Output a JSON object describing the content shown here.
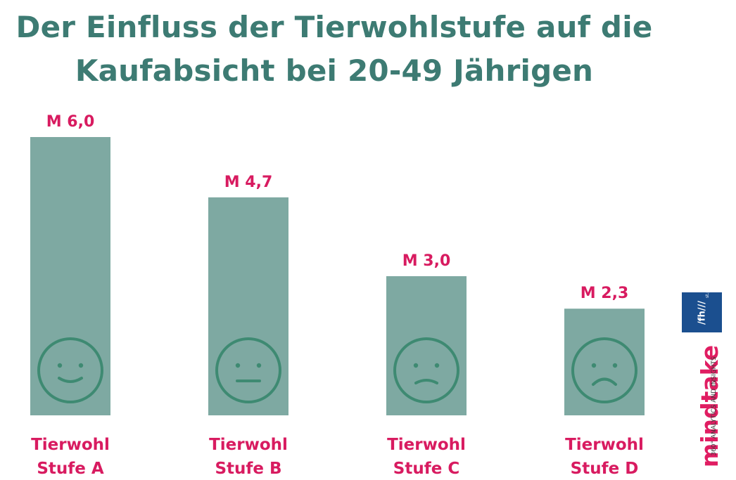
{
  "title": {
    "line1": "Der Einfluss der Tierwohlstufe auf die",
    "line2": "Kaufabsicht bei 20-49 Jährigen"
  },
  "chart_data": {
    "type": "bar",
    "categories": [
      [
        "Tierwohl",
        "Stufe A"
      ],
      [
        "Tierwohl",
        "Stufe B"
      ],
      [
        "Tierwohl",
        "Stufe C"
      ],
      [
        "Tierwohl",
        "Stufe D"
      ]
    ],
    "values": [
      6.0,
      4.7,
      3.0,
      2.3
    ],
    "data_labels": [
      "M 6,0",
      "M 4,7",
      "M 3,0",
      "M 2,3"
    ],
    "icons": [
      "smiling-face-icon",
      "neutral-face-icon",
      "slightly-frowning-face-icon",
      "frowning-face-icon"
    ],
    "ylim": [
      0,
      6.0
    ],
    "grid": false,
    "colors": {
      "bar": "#7ea9a2",
      "label": "#d81b60",
      "face": "#3e8a72"
    }
  },
  "logos": {
    "fh": {
      "text": "/fh///",
      "sub": "st.pölten"
    },
    "mindtake": {
      "word": "mindtake",
      "tagline": "360° ANALYTICS AND INSIGHTS"
    }
  },
  "colors": {
    "title": "#3d7b73",
    "fh_blue": "#1b4f8f",
    "mindtake_pink": "#e01d62"
  }
}
